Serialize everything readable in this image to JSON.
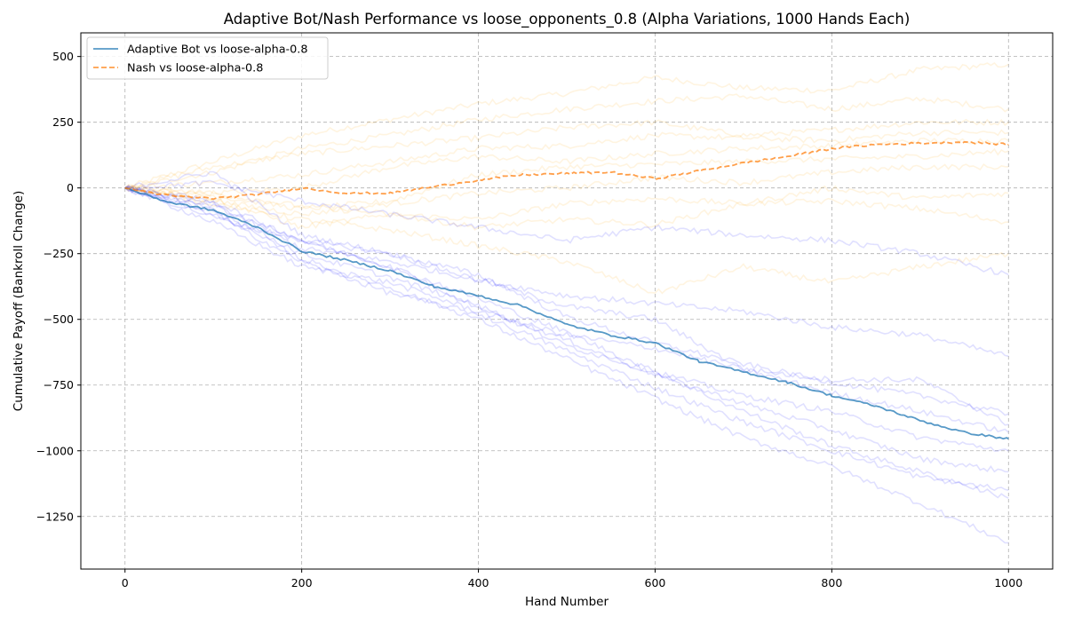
{
  "chart_data": {
    "type": "line",
    "title": "Adaptive Bot/Nash Performance vs  loose_opponents_0.8 (Alpha Variations, 1000 Hands Each)",
    "xlabel": "Hand Number",
    "ylabel": "Cumulative Payoff (Bankroll Change)",
    "xlim": [
      -50,
      1050
    ],
    "ylim": [
      -1450,
      590
    ],
    "x_ticks": [
      0,
      200,
      400,
      600,
      800,
      1000
    ],
    "x_tick_labels": [
      "0",
      "200",
      "400",
      "600",
      "800",
      "1000"
    ],
    "y_ticks": [
      500,
      250,
      0,
      -250,
      -500,
      -750,
      -1000,
      -1250
    ],
    "y_tick_labels": [
      "500",
      "250",
      "0",
      "−250",
      "−500",
      "−750",
      "−1000",
      "−1250"
    ],
    "grid": true,
    "legend_position": "top-left",
    "legend": [
      {
        "label": "Adaptive Bot vs loose-alpha-0.8",
        "color": "#1f77b4",
        "style": "solid"
      },
      {
        "label": "Nash vs loose-alpha-0.8",
        "color": "#ff7f0e",
        "style": "dashed"
      }
    ],
    "series": [
      {
        "name": "Adaptive Bot vs loose-alpha-0.8",
        "color": "#1f77b4",
        "style": "solid",
        "x": [
          0,
          50,
          100,
          150,
          200,
          250,
          300,
          350,
          400,
          450,
          500,
          550,
          600,
          650,
          700,
          750,
          800,
          850,
          900,
          950,
          1000
        ],
        "values": [
          0,
          -55,
          -85,
          -150,
          -240,
          -275,
          -315,
          -375,
          -410,
          -450,
          -520,
          -560,
          -590,
          -660,
          -700,
          -740,
          -790,
          -830,
          -885,
          -930,
          -955
        ]
      },
      {
        "name": "Nash vs loose-alpha-0.8",
        "color": "#ff7f0e",
        "style": "dashed",
        "x": [
          0,
          50,
          100,
          150,
          200,
          250,
          300,
          350,
          400,
          450,
          500,
          550,
          600,
          650,
          700,
          750,
          800,
          850,
          900,
          950,
          1000
        ],
        "values": [
          0,
          -30,
          -40,
          -25,
          0,
          -20,
          -20,
          5,
          30,
          50,
          55,
          60,
          35,
          65,
          95,
          120,
          150,
          165,
          170,
          175,
          165
        ]
      }
    ],
    "background_variations": {
      "adaptive": {
        "color": "#0000ff",
        "x": [
          0,
          100,
          200,
          300,
          400,
          500,
          600,
          700,
          800,
          900,
          1000
        ],
        "runs": [
          [
            0,
            20,
            -50,
            -100,
            -150,
            -200,
            -150,
            -180,
            -200,
            -250,
            -330
          ],
          [
            0,
            -60,
            -230,
            -280,
            -350,
            -410,
            -440,
            -470,
            -530,
            -560,
            -640
          ],
          [
            0,
            60,
            -180,
            -250,
            -350,
            -450,
            -500,
            -690,
            -730,
            -730,
            -900
          ],
          [
            0,
            -70,
            -200,
            -250,
            -330,
            -490,
            -590,
            -670,
            -740,
            -790,
            -860
          ],
          [
            0,
            -130,
            -300,
            -360,
            -470,
            -560,
            -610,
            -690,
            -780,
            -850,
            -930
          ],
          [
            0,
            -110,
            -200,
            -300,
            -450,
            -600,
            -700,
            -790,
            -850,
            -950,
            -1000
          ],
          [
            0,
            -80,
            -250,
            -340,
            -450,
            -580,
            -710,
            -820,
            -920,
            -1030,
            -1080
          ],
          [
            0,
            -50,
            -200,
            -300,
            -420,
            -550,
            -700,
            -850,
            -980,
            -1080,
            -1180
          ],
          [
            0,
            -100,
            -280,
            -400,
            -480,
            -620,
            -760,
            -890,
            -1000,
            -1100,
            -1150
          ],
          [
            0,
            -90,
            -270,
            -380,
            -500,
            -650,
            -800,
            -950,
            -1060,
            -1200,
            -1350
          ]
        ]
      },
      "nash": {
        "color": "#ffa500",
        "x": [
          0,
          100,
          200,
          300,
          400,
          500,
          600,
          700,
          800,
          900,
          1000
        ],
        "runs": [
          [
            0,
            100,
            200,
            260,
            320,
            360,
            420,
            380,
            370,
            450,
            470
          ],
          [
            0,
            60,
            150,
            200,
            260,
            300,
            330,
            350,
            300,
            340,
            300
          ],
          [
            0,
            80,
            130,
            160,
            190,
            230,
            250,
            200,
            220,
            250,
            250
          ],
          [
            0,
            20,
            50,
            100,
            150,
            160,
            200,
            190,
            180,
            210,
            210
          ],
          [
            0,
            -20,
            0,
            80,
            120,
            100,
            130,
            150,
            160,
            180,
            180
          ],
          [
            0,
            -30,
            -80,
            -50,
            50,
            80,
            90,
            100,
            110,
            120,
            140
          ],
          [
            0,
            -50,
            -100,
            -60,
            -20,
            0,
            40,
            20,
            60,
            80,
            80
          ],
          [
            0,
            -20,
            -70,
            -100,
            -120,
            -60,
            -40,
            -60,
            0,
            -40,
            -20
          ],
          [
            0,
            -40,
            -150,
            -100,
            -150,
            -120,
            -140,
            -60,
            -50,
            -80,
            -130
          ],
          [
            0,
            -60,
            -120,
            -160,
            -220,
            -280,
            -400,
            -300,
            -360,
            -300,
            -250
          ]
        ]
      }
    }
  }
}
